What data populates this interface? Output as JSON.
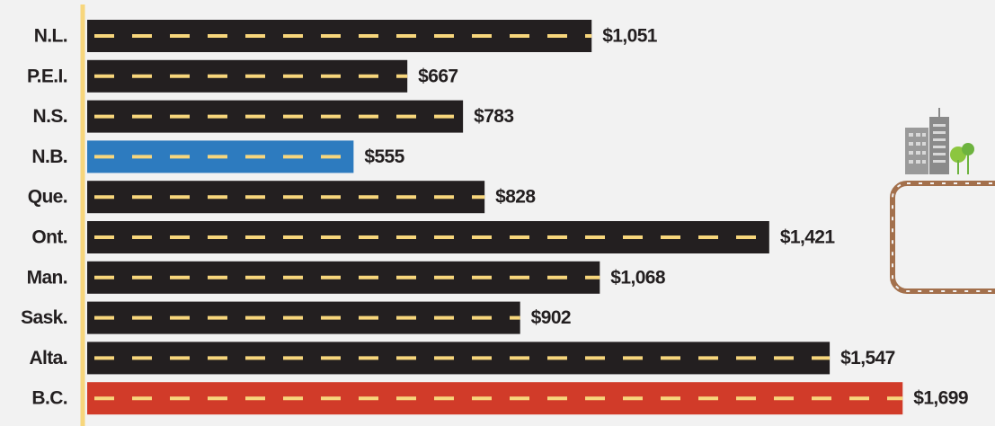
{
  "chart_data": {
    "type": "bar",
    "orientation": "horizontal",
    "categories": [
      "N.L.",
      "P.E.I.",
      "N.S.",
      "N.B.",
      "Que.",
      "Ont.",
      "Man.",
      "Sask.",
      "Alta.",
      "B.C."
    ],
    "values": [
      1051,
      667,
      783,
      555,
      828,
      1421,
      1068,
      902,
      1547,
      1699
    ],
    "value_labels": [
      "$1,051",
      "$667",
      "$783",
      "$555",
      "$828",
      "$1,421",
      "$1,068",
      "$902",
      "$1,547",
      "$1,699"
    ],
    "colors": [
      "#231f20",
      "#231f20",
      "#231f20",
      "#2d7bbf",
      "#231f20",
      "#231f20",
      "#231f20",
      "#231f20",
      "#231f20",
      "#d13b29"
    ],
    "lane_color": "#f7d67c",
    "axis_color": "#f7d67c"
  }
}
